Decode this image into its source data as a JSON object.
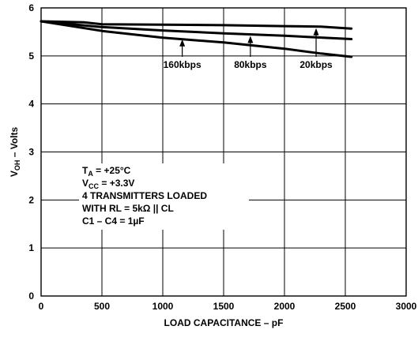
{
  "chart_data": {
    "type": "line",
    "title": "",
    "xlabel": "LOAD CAPACITANCE – pF",
    "ylabel": {
      "main": "V",
      "sub": "OH",
      "rest": " – Volts"
    },
    "xlim": [
      0,
      3000
    ],
    "ylim": [
      0,
      6
    ],
    "xticks": [
      0,
      500,
      1000,
      1500,
      2000,
      2500,
      3000
    ],
    "yticks": [
      0,
      1,
      2,
      3,
      4,
      5,
      6
    ],
    "xtick_labels": [
      "0",
      "500",
      "1000",
      "1500",
      "2000",
      "2500",
      "3000"
    ],
    "ytick_labels": [
      "0",
      "1",
      "2",
      "3",
      "4",
      "5",
      "6"
    ],
    "grid": true,
    "series": [
      {
        "name": "20kbps",
        "x": [
          0,
          350,
          500,
          1000,
          1500,
          2000,
          2300,
          2550
        ],
        "y": [
          5.72,
          5.7,
          5.66,
          5.65,
          5.64,
          5.62,
          5.61,
          5.57
        ]
      },
      {
        "name": "80kbps",
        "x": [
          0,
          500,
          1000,
          1500,
          2000,
          2550
        ],
        "y": [
          5.72,
          5.6,
          5.53,
          5.47,
          5.42,
          5.35
        ]
      },
      {
        "name": "160kbps",
        "x": [
          0,
          500,
          1000,
          1500,
          2000,
          2300,
          2550
        ],
        "y": [
          5.72,
          5.52,
          5.38,
          5.28,
          5.15,
          5.05,
          4.98
        ]
      }
    ],
    "annotations": [
      {
        "series": "160kbps",
        "x": 1160,
        "y": 5.38
      },
      {
        "series": "80kbps",
        "x": 1720,
        "y": 5.45
      },
      {
        "series": "20kbps",
        "x": 2260,
        "y": 5.61
      }
    ],
    "conditions": [
      {
        "main": "T",
        "sub": "A",
        "rest": " = +25°C"
      },
      {
        "main": "V",
        "sub": "CC",
        "rest": " = +3.3V"
      },
      {
        "main": "4 TRANSMITTERS LOADED",
        "sub": "",
        "rest": ""
      },
      {
        "main": "WITH RL = 5kΩ || CL",
        "sub": "",
        "rest": ""
      },
      {
        "main": "C1 – C4 = 1µF",
        "sub": "",
        "rest": ""
      }
    ]
  }
}
